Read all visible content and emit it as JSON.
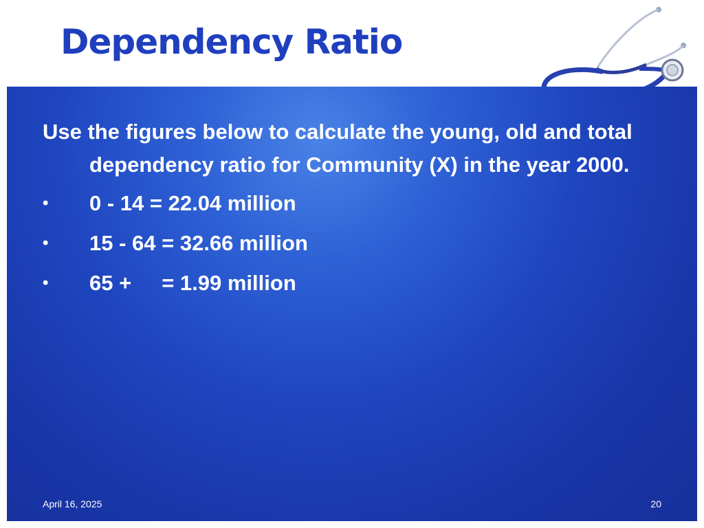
{
  "slide": {
    "title": "Dependency Ratio",
    "intro": "Use the figures below to calculate the young, old and total dependency ratio for Community  (X) in the year 2000.",
    "bullet_symbol": "•",
    "bullets": [
      {
        "text": "0 - 14 = 22.04 million"
      },
      {
        "text": "15 - 64 = 32.66 million"
      },
      {
        "prefix": "65 +",
        "value": "= 1.99 million"
      }
    ],
    "footer": {
      "date": "April 16, 2025",
      "page_number": "20"
    }
  },
  "icons": {
    "stethoscope": "stethoscope-icon"
  },
  "colors": {
    "title": "#1f3fbf",
    "panel": "#1f46c0",
    "panel_highlight": "#4a82e6",
    "text": "#ffffff"
  }
}
